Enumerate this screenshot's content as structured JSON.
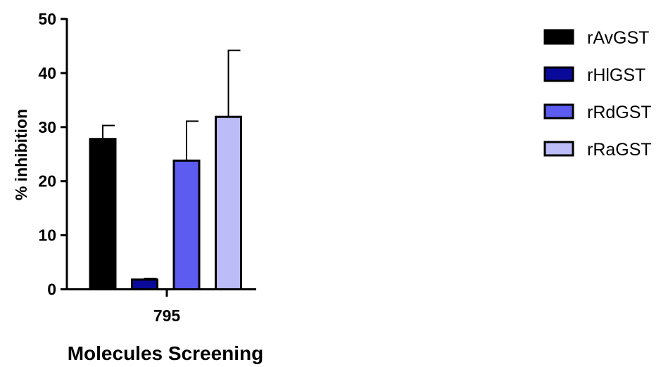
{
  "chart_data": {
    "type": "bar",
    "title": "",
    "xlabel": "Molecules Screening",
    "ylabel": "% inhibition",
    "categories": [
      "795"
    ],
    "ylim": [
      0,
      50
    ],
    "yticks": [
      0,
      10,
      20,
      30,
      40,
      50
    ],
    "grid": false,
    "legend_position": "top-right",
    "series": [
      {
        "name": "rAvGST",
        "values": [
          27.8
        ],
        "error": [
          2.5
        ],
        "color": "#000000"
      },
      {
        "name": "rHlGST",
        "values": [
          1.8
        ],
        "error": [
          0.2
        ],
        "color": "#0a0a9a"
      },
      {
        "name": "rRdGST",
        "values": [
          23.8
        ],
        "error": [
          7.3
        ],
        "color": "#5c5cf0"
      },
      {
        "name": "rRaGST",
        "values": [
          31.9
        ],
        "error": [
          12.3
        ],
        "color": "#bcbcf8"
      }
    ]
  }
}
